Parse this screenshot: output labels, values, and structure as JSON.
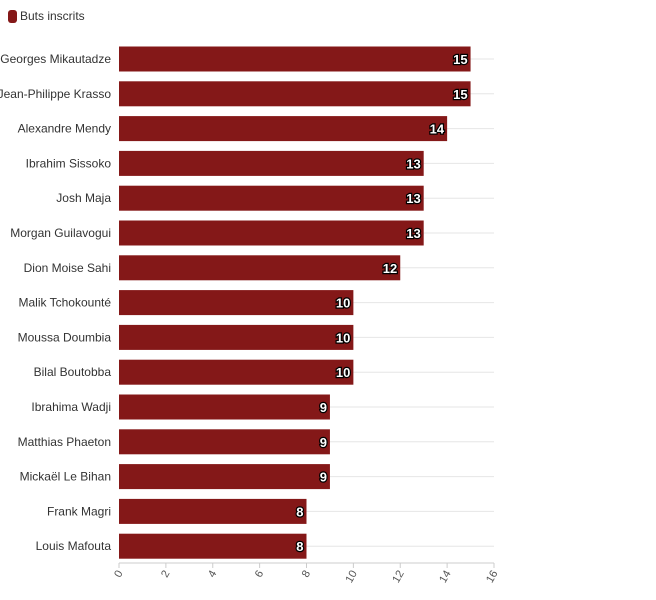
{
  "colors": {
    "bar": "#841818",
    "grid": "#e6e6e6"
  },
  "chart_data": {
    "type": "bar",
    "orientation": "horizontal",
    "legend": {
      "position": "top-left"
    },
    "series": [
      {
        "name": "Buts inscrits",
        "values": [
          15,
          15,
          14,
          13,
          13,
          13,
          12,
          10,
          10,
          10,
          9,
          9,
          9,
          8,
          8
        ]
      }
    ],
    "categories": [
      "Georges Mikautadze",
      "Jean-Philippe Krasso",
      "Alexandre Mendy",
      "Ibrahim Sissoko",
      "Josh Maja",
      "Morgan Guilavogui",
      "Dion Moise Sahi",
      "Malik Tchokounté",
      "Moussa Doumbia",
      "Bilal Boutobba",
      "Ibrahima Wadji",
      "Matthias Phaeton",
      "Mickaël Le Bihan",
      "Frank Magri",
      "Louis Mafouta"
    ],
    "xlim": [
      0,
      16
    ],
    "xticks": [
      0,
      2,
      4,
      6,
      8,
      10,
      12,
      14,
      16
    ],
    "grid": true
  }
}
